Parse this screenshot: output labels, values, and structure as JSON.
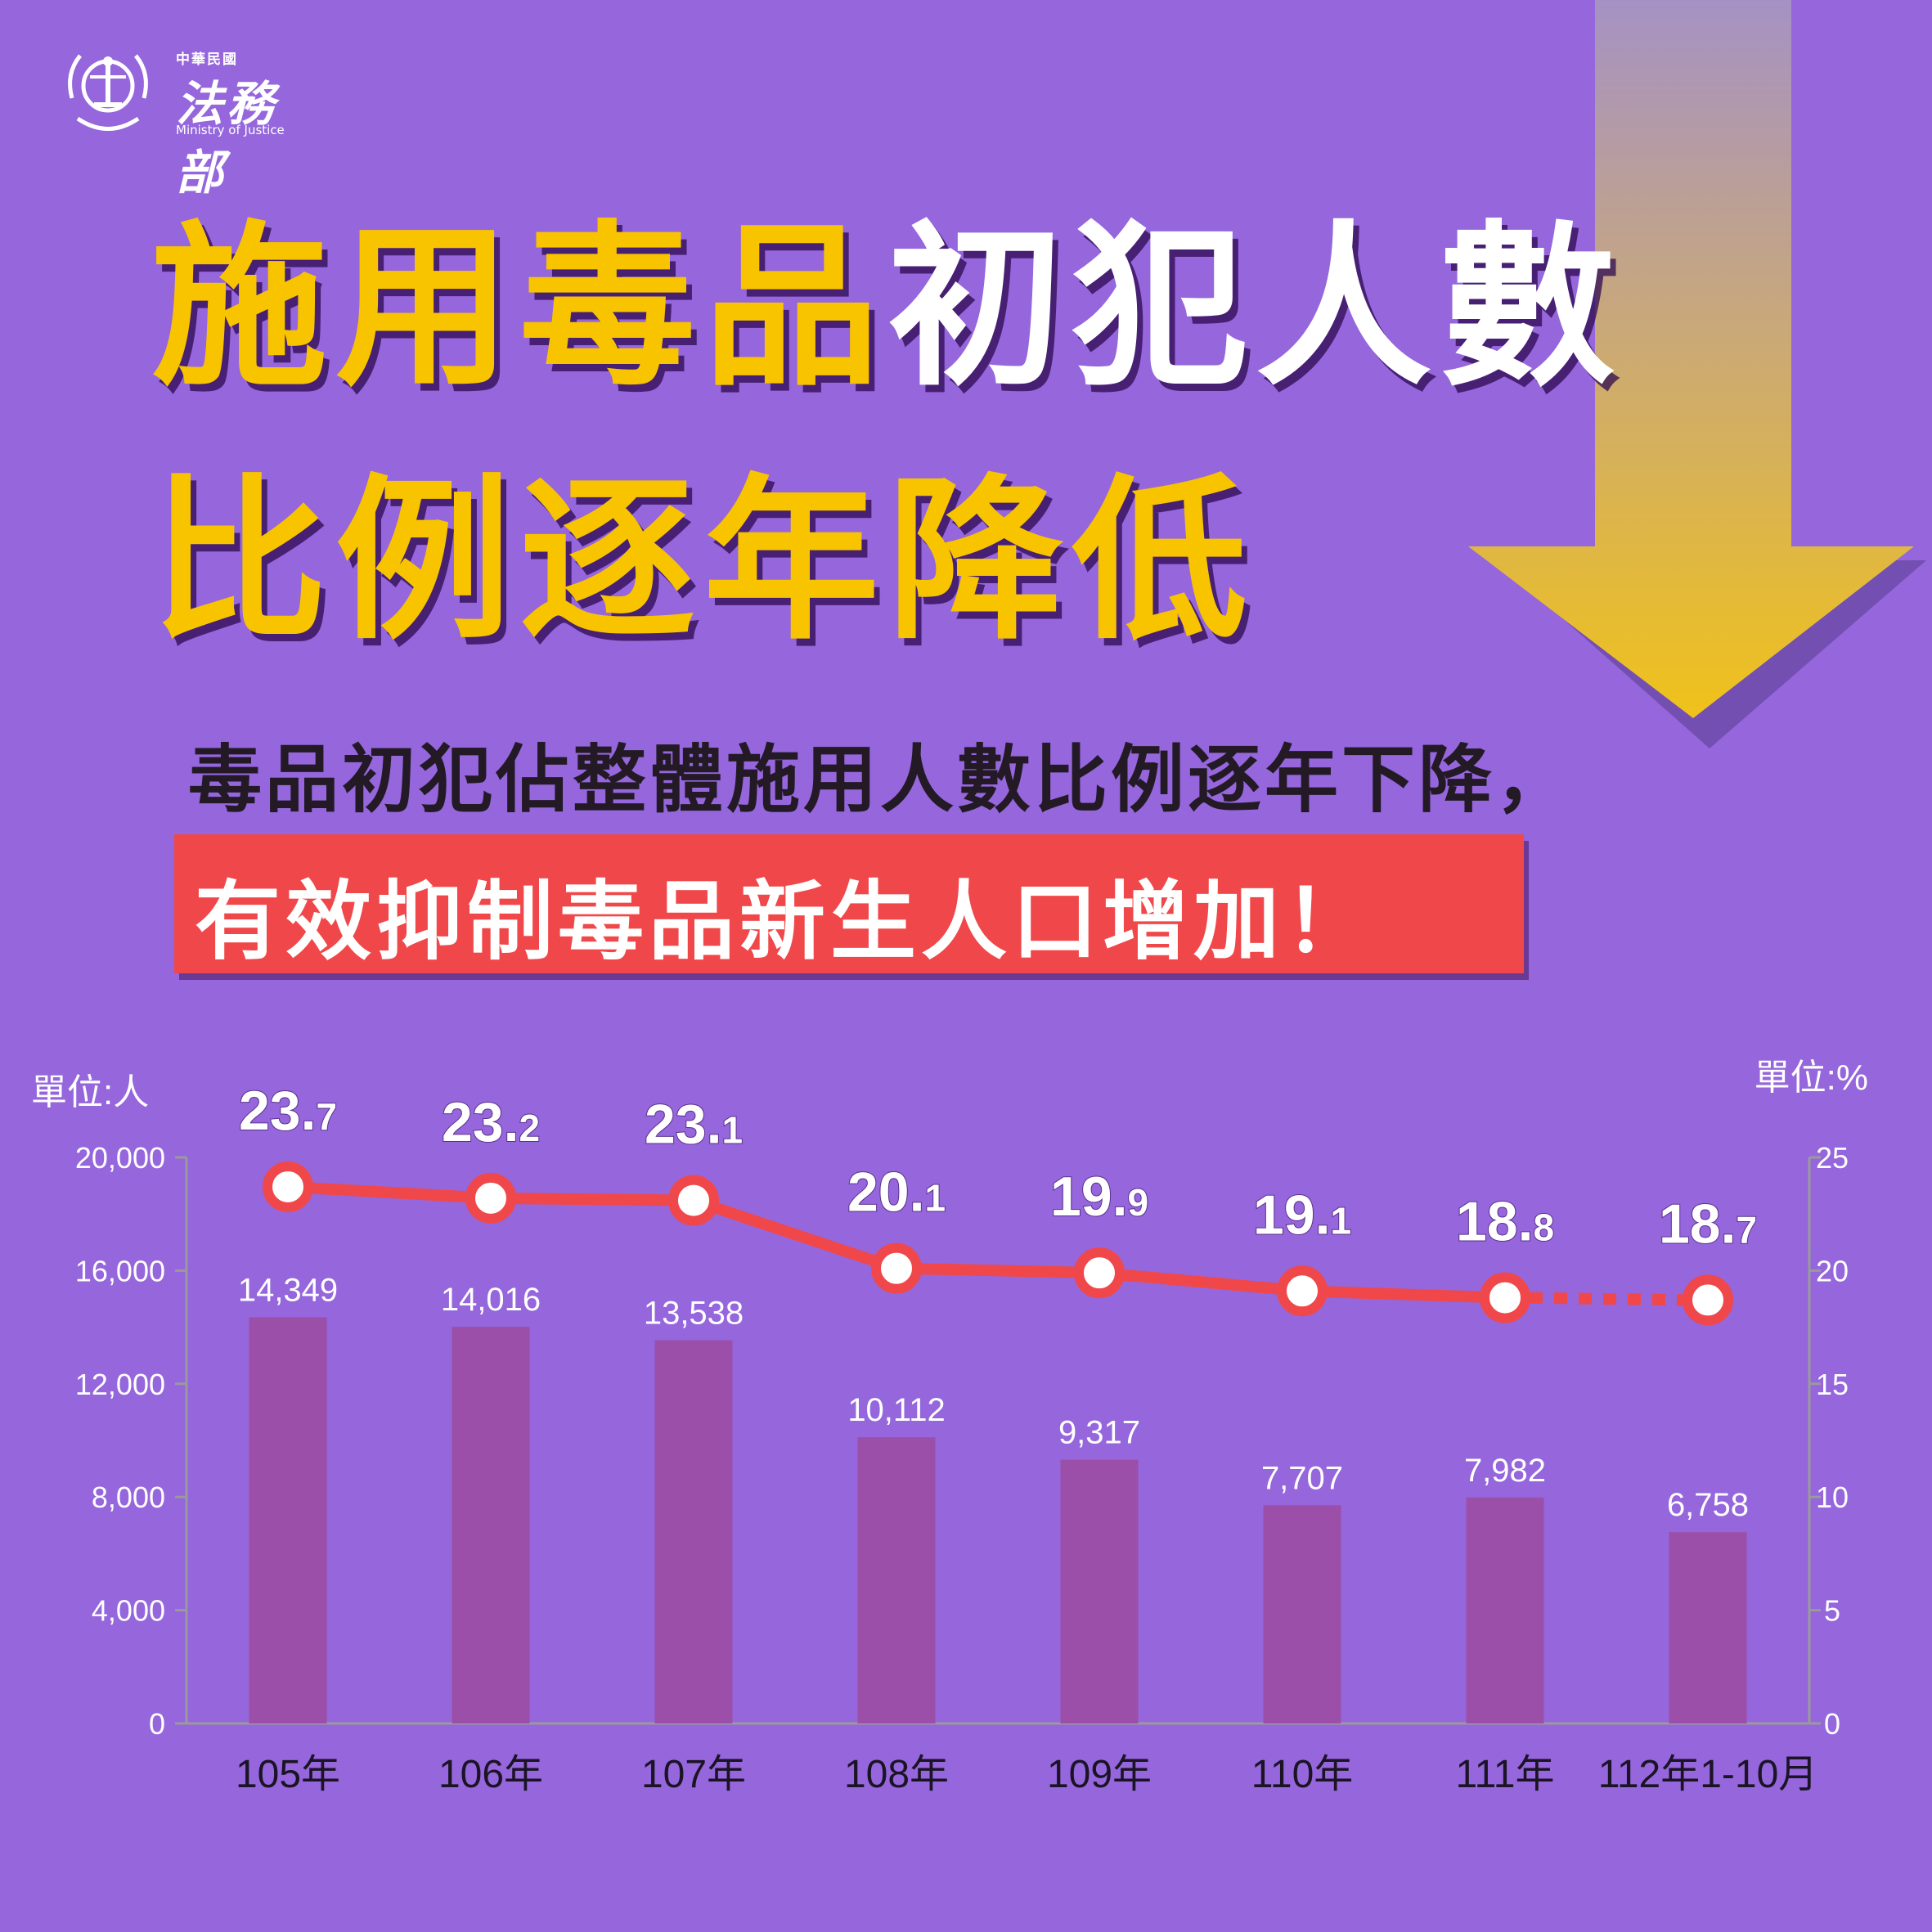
{
  "logo": {
    "country": "中華民國",
    "name": "法務部",
    "name_en": "Ministry of Justice"
  },
  "title": {
    "line1_yellow": "施用毒品",
    "line1_white": "初犯人數",
    "line2": "比例逐年降低"
  },
  "subtitle": "毒品初犯佔整體施用人數比例逐年下降，",
  "banner": "有效抑制毒品新生人口增加！",
  "colors": {
    "background": "#9566dc",
    "title_yellow": "#f8c400",
    "bar": "#9c4fa8",
    "line": "#f0484a",
    "banner": "#f0484a"
  },
  "chart_data": {
    "type": "bar",
    "categories": [
      "105年",
      "106年",
      "107年",
      "108年",
      "109年",
      "110年",
      "111年",
      "112年1-10月"
    ],
    "series": [
      {
        "values": [
          14349,
          14016,
          13538,
          10112,
          9317,
          7707,
          7982,
          6758
        ]
      },
      {
        "values": [
          23.7,
          23.2,
          23.1,
          20.1,
          19.9,
          19.1,
          18.8,
          18.7
        ]
      }
    ],
    "bar_labels": [
      "14,349",
      "14,016",
      "13,538",
      "10,112",
      "9,317",
      "7,707",
      "7,982",
      "6,758"
    ],
    "line_labels": [
      [
        "23.",
        "7"
      ],
      [
        "23.",
        "2"
      ],
      [
        "23.",
        "1"
      ],
      [
        "20.",
        "1"
      ],
      [
        "19.",
        "9"
      ],
      [
        "19.",
        "1"
      ],
      [
        "18.",
        "8"
      ],
      [
        "18.",
        "7"
      ]
    ],
    "ylabel_left": "單位:人",
    "ylabel_right": "單位:%",
    "ylim_left": [
      0,
      20000
    ],
    "ylim_right": [
      0,
      25
    ],
    "yticks_left": [
      "0",
      "4,000",
      "8,000",
      "12,000",
      "16,000",
      "20,000"
    ],
    "yticks_right": [
      "0",
      "5",
      "10",
      "15",
      "20",
      "25"
    ],
    "last_segment_dashed": true
  }
}
